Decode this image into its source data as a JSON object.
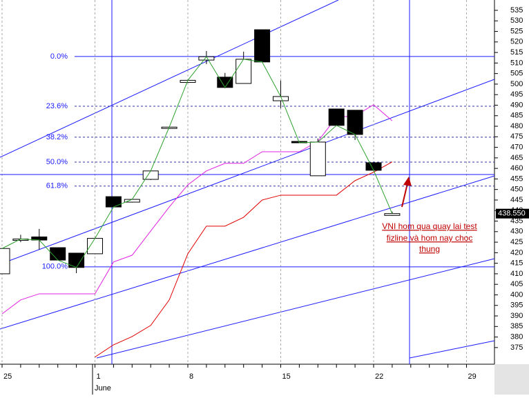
{
  "chart_data": {
    "type": "candlestick",
    "categories": [
      "25",
      null,
      null,
      null,
      null,
      "1",
      null,
      null,
      null,
      null,
      "8",
      null,
      null,
      null,
      null,
      "15",
      null,
      null,
      null,
      null,
      "22",
      null,
      null,
      null,
      null,
      "29"
    ],
    "month_label": "June",
    "open": [
      410,
      426,
      427.5,
      422.4,
      419.8,
      419.5,
      446.6,
      444,
      454.8,
      479.2,
      500.8,
      511.4,
      503.3,
      500.3,
      525.8,
      492.1,
      472.8,
      456.5,
      488.2,
      487.6,
      462.7,
      437.7,
      null,
      null,
      null,
      null
    ],
    "high": [
      422,
      428.5,
      431.3,
      422.4,
      419.8,
      426.8,
      446.6,
      445.5,
      459,
      479.6,
      502,
      515.7,
      505.3,
      515.4,
      525.8,
      501.7,
      472.8,
      474.2,
      488.2,
      487.6,
      462.7,
      439.5,
      null,
      null,
      null,
      null
    ],
    "low": [
      410,
      425,
      421.5,
      416.5,
      410.3,
      419.5,
      441.7,
      443.8,
      454.5,
      479.2,
      500.6,
      509.5,
      498,
      500.3,
      510.5,
      488.6,
      472.2,
      456.5,
      480.4,
      473.5,
      459.1,
      437.5,
      null,
      null,
      null,
      null
    ],
    "close": [
      422,
      426.5,
      426,
      416.5,
      413,
      426.8,
      441.7,
      445.3,
      458.8,
      479.6,
      501.8,
      513,
      498.4,
      511.8,
      510.5,
      494.1,
      472.2,
      472.5,
      480.4,
      476.1,
      459.1,
      438.55,
      null,
      null,
      null,
      null
    ],
    "close_line_color": "#2ca02c",
    "overlays": [
      {
        "color": "#e020e0",
        "values": [
          391,
          397.6,
          400.5,
          400.5,
          400.5,
          400.5,
          415.6,
          418.8,
          430.3,
          441.7,
          452.2,
          458.8,
          462.4,
          462.4,
          467.9,
          467.9,
          467.9,
          472.8,
          484.3,
          484.9,
          490.2,
          482.6,
          null,
          null,
          null,
          null
        ]
      },
      {
        "color": "#e00000",
        "values": [
          null,
          null,
          null,
          null,
          null,
          370.5,
          376.3,
          380.2,
          385.5,
          397.6,
          419.5,
          432.6,
          432.6,
          436.8,
          445,
          447.3,
          447.3,
          447.3,
          447.3,
          454.2,
          458.2,
          463.1,
          null,
          null,
          null,
          null
        ]
      }
    ],
    "fib_levels": [
      {
        "value": 513.1,
        "label": "0.0%"
      },
      {
        "value": 489.5,
        "label": "23.6%"
      },
      {
        "value": 474.8,
        "label": "38.2%"
      },
      {
        "value": 463.0,
        "label": "50.0%"
      },
      {
        "value": 451.6,
        "label": "61.8%"
      },
      {
        "value": 413.3,
        "label": "100.0%"
      }
    ],
    "hline": 457.1,
    "last_price": {
      "value": 438.55,
      "label": "438.550"
    },
    "ylim": [
      367.1,
      539.9
    ],
    "yticks": [
      375,
      380,
      385,
      390,
      395,
      400,
      405,
      410,
      415,
      420,
      425,
      430,
      435,
      440,
      445,
      450,
      455,
      460,
      465,
      470,
      475,
      480,
      485,
      490,
      495,
      500,
      505,
      510,
      515,
      520,
      525,
      530,
      535
    ],
    "annotation": [
      "VNI hom qua quay lai test",
      "fizline và hom nay choc",
      "thung"
    ]
  }
}
